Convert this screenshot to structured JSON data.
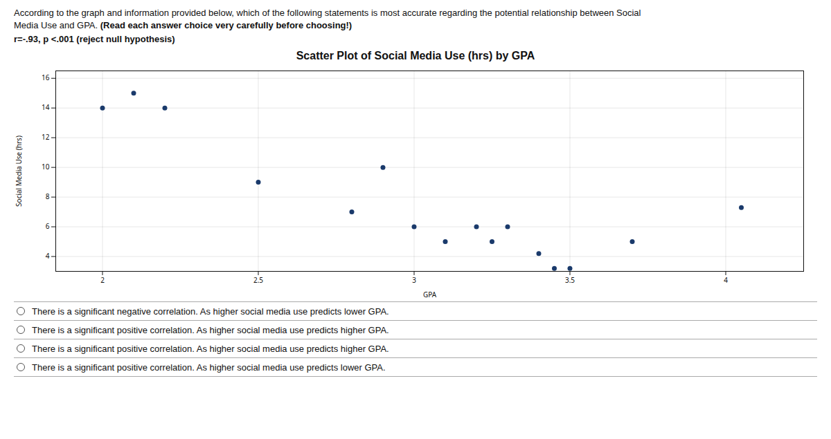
{
  "chart_data": {
    "type": "scatter",
    "title": "Scatter Plot of Social Media Use (hrs) by GPA",
    "subtitle": [
      "According to the graph and information provided below, which of the following statements is most accurate regarding the potential relationship between Social",
      "Media Use and GPA. (Read each answer choice very carefully before choosing!)",
      "r=-.93, p <.001 (reject null hypothesis)"
    ],
    "xlabel": "GPA",
    "ylabel": "Social Media Use (hrs)",
    "x": [
      2.0,
      2.1,
      2.2,
      2.5,
      2.8,
      2.9,
      3.0,
      3.1,
      3.2,
      3.25,
      3.3,
      3.4,
      3.45,
      3.5,
      3.7,
      4.05
    ],
    "values": [
      14,
      15,
      14,
      9,
      7,
      10,
      6,
      5,
      6,
      5,
      6,
      4.2,
      3.2,
      3.2,
      5,
      7.3
    ],
    "color": "#1a3a6b",
    "xlim": [
      1.85,
      4.25
    ],
    "ylim": [
      3.0,
      16.5
    ],
    "xticks": [
      2.0,
      2.5,
      3.0,
      3.5,
      4.0
    ],
    "yticks": [
      4,
      6,
      8,
      10,
      12,
      14,
      16
    ],
    "grid": true,
    "annotations": [
      "There is a significant negative correlation. As higher social media use predicts lower GPA.",
      "There is a significant positive correlation. As higher social media use predicts higher GPA.",
      "There is a significant positive correlation. As higher social media use predicts higher GPA.",
      "There is a significant positive correlation. As higher social media use predicts lower GPA."
    ]
  }
}
